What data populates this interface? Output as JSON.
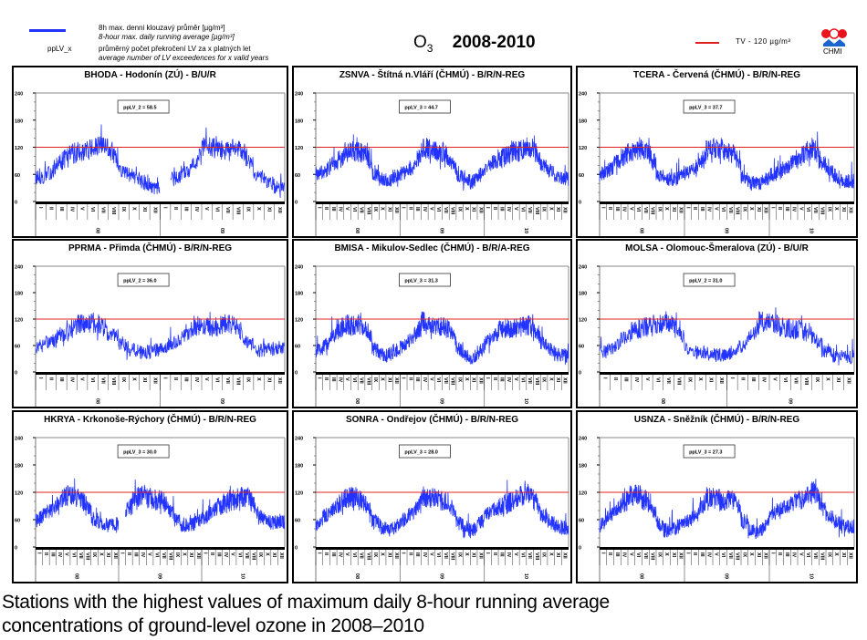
{
  "legend": {
    "series_line_color": "#2233ff",
    "series_label_cz": "8h max. denni klouzavý průměr [µg/m³]",
    "series_label_en": "8-hour max. daily running average [µg/m³]",
    "pplv_key": "ppLV_x",
    "pplv_label_cz": "průměrný počet překročení LV za x platných let",
    "pplv_label_en": "average number of LV exceedences for x valid years"
  },
  "header": {
    "species": "O",
    "species_sub": "3",
    "period": "2008-2010",
    "tv_label": "TV - 120 µg/m³",
    "tv_color": "#e02020",
    "logo_text": "CHMI"
  },
  "caption": {
    "line1": "Stations with the highest values of maximum daily 8-hour running average",
    "line2": "concentrations of ground-level ozone in 2008–2010"
  },
  "chart_data": [
    {
      "type": "line",
      "title": "BHODA - Hodonín (ZÚ) - B/U/R",
      "annotation": "ppLV_2 = 58.5",
      "years": [
        "08",
        "09"
      ],
      "ylim": [
        0,
        240
      ],
      "yticks": [
        0,
        60,
        120,
        180,
        240
      ],
      "threshold": 120,
      "months": [
        "I",
        "II",
        "III",
        "IV",
        "V",
        "VI",
        "VII",
        "VIII",
        "IX",
        "X",
        "XI",
        "XII"
      ],
      "series": [
        {
          "name": "8h max daily running average",
          "monthly_values": [
            [
              52,
              58,
              85,
              105,
              112,
              115,
              122,
              118,
              68,
              60,
              45,
              28
            ],
            [
              null,
              48,
              62,
              78,
              120,
              118,
              110,
              118,
              108,
              62,
              48,
              30
            ]
          ]
        }
      ]
    },
    {
      "type": "line",
      "title": "ZSNVA - Štítná n.Vláří (ČHMÚ) - B/R/N-REG",
      "annotation": "ppLV_3 = 44.7",
      "years": [
        "08",
        "09",
        "10"
      ],
      "ylim": [
        0,
        240
      ],
      "yticks": [
        0,
        60,
        120,
        180,
        240
      ],
      "threshold": 120,
      "months": [
        "I",
        "II",
        "III",
        "IV",
        "V",
        "VI",
        "VII",
        "VIII",
        "IX",
        "X",
        "XI",
        "XII"
      ],
      "series": [
        {
          "name": "8h max daily running average",
          "monthly_values": [
            [
              62,
              66,
              82,
              92,
              110,
              112,
              108,
              110,
              60,
              50,
              45,
              55
            ],
            [
              62,
              68,
              82,
              120,
              115,
              112,
              110,
              90,
              60,
              48,
              42,
              55
            ],
            [
              72,
              85,
              95,
              100,
              110,
              112,
              120,
              112,
              80,
              70,
              58,
              50
            ]
          ]
        }
      ]
    },
    {
      "type": "line",
      "title": "TCERA - Červená (ČHMÚ) - B/R/N-REG",
      "annotation": "ppLV_3 = 37.7",
      "years": [
        "08",
        "09",
        "10"
      ],
      "ylim": [
        0,
        240
      ],
      "yticks": [
        0,
        60,
        120,
        180,
        240
      ],
      "threshold": 120,
      "months": [
        "I",
        "II",
        "III",
        "IV",
        "V",
        "VI",
        "VII",
        "VIII",
        "IX",
        "X",
        "XI",
        "XII"
      ],
      "series": [
        {
          "name": "8h max daily running average",
          "monthly_values": [
            [
              62,
              68,
              85,
              98,
              110,
              115,
              112,
              105,
              60,
              52,
              48,
              52
            ],
            [
              62,
              72,
              85,
              112,
              118,
              110,
              112,
              100,
              55,
              42,
              38,
              45
            ],
            [
              58,
              65,
              75,
              85,
              95,
              110,
              118,
              95,
              72,
              58,
              45,
              45
            ]
          ]
        }
      ]
    },
    {
      "type": "line",
      "title": "PPRMA - Přimda (ČHMÚ) - B/R/N-REG",
      "annotation": "ppLV_2 = 36.0",
      "years": [
        "08",
        "09"
      ],
      "ylim": [
        0,
        240
      ],
      "yticks": [
        0,
        60,
        120,
        180,
        240
      ],
      "threshold": 120,
      "months": [
        "I",
        "II",
        "III",
        "IV",
        "V",
        "VI",
        "VII",
        "VIII",
        "IX",
        "X",
        "XI",
        "XII"
      ],
      "series": [
        {
          "name": "8h max daily running average",
          "monthly_values": [
            [
              55,
              68,
              80,
              92,
              112,
              110,
              108,
              92,
              65,
              52,
              45,
              45
            ],
            [
              58,
              65,
              75,
              105,
              105,
              102,
              108,
              105,
              72,
              50,
              50,
              55
            ]
          ]
        }
      ]
    },
    {
      "type": "line",
      "title": "BMISA - Mikulov-Sedlec (ČHMÚ) - B/R/A-REG",
      "annotation": "ppLV_3 = 31.3",
      "years": [
        "08",
        "09",
        "10"
      ],
      "ylim": [
        0,
        240
      ],
      "yticks": [
        0,
        60,
        120,
        180,
        240
      ],
      "threshold": 120,
      "months": [
        "I",
        "II",
        "III",
        "IV",
        "V",
        "VI",
        "VII",
        "VIII",
        "IX",
        "X",
        "XI",
        "XII"
      ],
      "series": [
        {
          "name": "8h max daily running average",
          "monthly_values": [
            [
              48,
              58,
              78,
              95,
              108,
              105,
              108,
              100,
              55,
              40,
              38,
              48
            ],
            [
              55,
              68,
              85,
              115,
              108,
              105,
              102,
              92,
              55,
              38,
              32,
              42
            ],
            [
              68,
              80,
              92,
              98,
              100,
              102,
              108,
              92,
              68,
              55,
              40,
              38
            ]
          ]
        }
      ]
    },
    {
      "type": "line",
      "title": "MOLSA - Olomouc-Šmeralova (ZÚ) - B/U/R",
      "annotation": "ppLV_2 = 31.0",
      "years": [
        "08",
        "09"
      ],
      "ylim": [
        0,
        240
      ],
      "yticks": [
        0,
        60,
        120,
        180,
        240
      ],
      "threshold": 120,
      "months": [
        "I",
        "II",
        "III",
        "IV",
        "V",
        "VI",
        "VII",
        "VIII",
        "IX",
        "X",
        "XI",
        "XII"
      ],
      "series": [
        {
          "name": "8h max daily running average",
          "monthly_values": [
            [
              45,
              52,
              75,
              95,
              100,
              108,
              110,
              100,
              55,
              45,
              40,
              38
            ],
            [
              42,
              55,
              80,
              115,
              112,
              100,
              98,
              95,
              78,
              45,
              38,
              35
            ]
          ]
        }
      ]
    },
    {
      "type": "line",
      "title": "HKRYA - Krkonoše-Rýchory (ČHMÚ) - B/R/N-REG",
      "annotation": "ppLV_3 = 30.0",
      "years": [
        "08",
        "09",
        "10"
      ],
      "ylim": [
        0,
        240
      ],
      "yticks": [
        0,
        60,
        120,
        180,
        240
      ],
      "threshold": 120,
      "months": [
        "I",
        "II",
        "III",
        "IV",
        "V",
        "VI",
        "VII",
        "VIII",
        "IX",
        "X",
        "XI",
        "XII"
      ],
      "series": [
        {
          "name": "8h max daily running average",
          "monthly_values": [
            [
              58,
              72,
              80,
              95,
              112,
              115,
              105,
              95,
              62,
              55,
              48,
              50
            ],
            [
              null,
              80,
              110,
              112,
              108,
              105,
              102,
              85,
              60,
              50,
              48,
              55
            ],
            [
              62,
              75,
              90,
              95,
              100,
              108,
              112,
              100,
              70,
              58,
              52,
              55
            ]
          ]
        }
      ]
    },
    {
      "type": "line",
      "title": "SONRA - Ondřejov (ČHMÚ) - B/R/N-REG",
      "annotation": "ppLV_3 = 28.0",
      "years": [
        "08",
        "09",
        "10"
      ],
      "ylim": [
        0,
        240
      ],
      "yticks": [
        0,
        60,
        120,
        180,
        240
      ],
      "threshold": 120,
      "months": [
        "I",
        "II",
        "III",
        "IV",
        "V",
        "VI",
        "VII",
        "VIII",
        "IX",
        "X",
        "XI",
        "XII"
      ],
      "series": [
        {
          "name": "8h max daily running average",
          "monthly_values": [
            [
              48,
              68,
              80,
              95,
              108,
              110,
              105,
              95,
              60,
              45,
              38,
              42
            ],
            [
              55,
              68,
              80,
              110,
              110,
              102,
              100,
              95,
              55,
              38,
              35,
              48
            ],
            [
              72,
              80,
              90,
              95,
              102,
              112,
              120,
              100,
              72,
              58,
              45,
              42
            ]
          ]
        }
      ]
    },
    {
      "type": "line",
      "title": "USNZA - Sněžník (ČHMÚ) - B/R/N-REG",
      "annotation": "ppLV_3 = 27.3",
      "years": [
        "08",
        "09",
        "10"
      ],
      "ylim": [
        0,
        240
      ],
      "yticks": [
        0,
        60,
        120,
        180,
        240
      ],
      "threshold": 120,
      "months": [
        "I",
        "II",
        "III",
        "IV",
        "V",
        "VI",
        "VII",
        "VIII",
        "IX",
        "X",
        "XI",
        "XII"
      ],
      "series": [
        {
          "name": "8h max daily running average",
          "monthly_values": [
            [
              48,
              65,
              80,
              95,
              112,
              118,
              105,
              90,
              55,
              38,
              38,
              45
            ],
            [
              52,
              65,
              80,
              112,
              108,
              100,
              105,
              95,
              58,
              40,
              32,
              42
            ],
            [
              72,
              80,
              88,
              92,
              102,
              110,
              125,
              98,
              72,
              58,
              45,
              45
            ]
          ]
        }
      ]
    }
  ]
}
